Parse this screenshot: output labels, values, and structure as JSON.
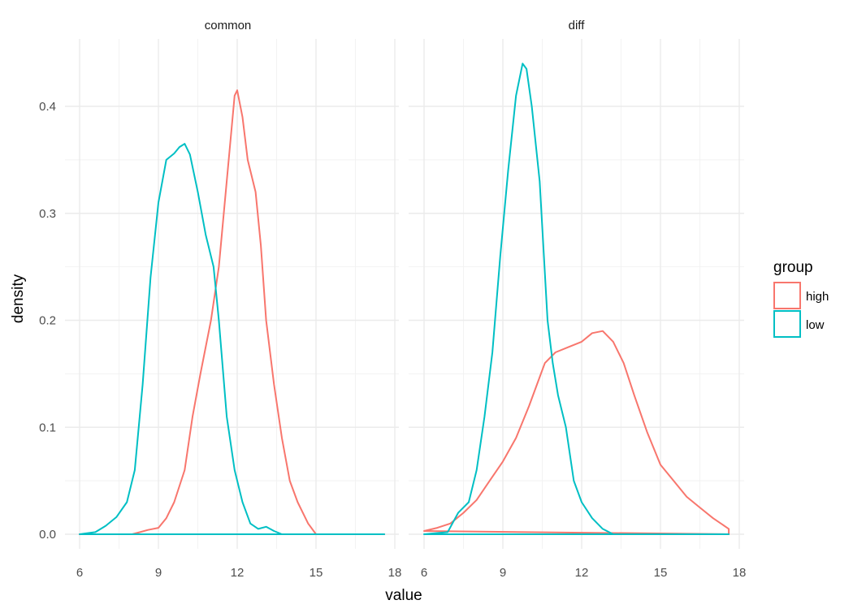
{
  "chart_data": {
    "type": "line",
    "subtype": "density, faceted",
    "xlabel": "value",
    "ylabel": "density",
    "xlim": [
      6,
      18
    ],
    "ylim": [
      0,
      0.44
    ],
    "x_ticks": [
      6,
      9,
      12,
      15,
      18
    ],
    "y_ticks": [
      0.0,
      0.1,
      0.2,
      0.3,
      0.4
    ],
    "y_tick_labels": [
      "0.0",
      "0.1",
      "0.2",
      "0.3",
      "0.4"
    ],
    "grid": true,
    "legend": {
      "title": "group",
      "placement": "right",
      "entries": [
        {
          "name": "high",
          "color": "#F8766D"
        },
        {
          "name": "low",
          "color": "#00BFC4"
        }
      ]
    },
    "facets": [
      {
        "label": "common",
        "series": [
          {
            "name": "high",
            "color": "#F8766D",
            "points": [
              [
                6.0,
                0
              ],
              [
                8.0,
                0.0
              ],
              [
                8.3,
                0.002
              ],
              [
                8.6,
                0.004
              ],
              [
                9.0,
                0.006
              ],
              [
                9.3,
                0.015
              ],
              [
                9.6,
                0.03
              ],
              [
                10.0,
                0.06
              ],
              [
                10.3,
                0.11
              ],
              [
                10.6,
                0.15
              ],
              [
                11.0,
                0.2
              ],
              [
                11.3,
                0.25
              ],
              [
                11.6,
                0.33
              ],
              [
                11.9,
                0.41
              ],
              [
                12.0,
                0.415
              ],
              [
                12.2,
                0.39
              ],
              [
                12.4,
                0.35
              ],
              [
                12.7,
                0.32
              ],
              [
                12.9,
                0.27
              ],
              [
                13.1,
                0.2
              ],
              [
                13.4,
                0.14
              ],
              [
                13.7,
                0.09
              ],
              [
                14.0,
                0.05
              ],
              [
                14.3,
                0.03
              ],
              [
                14.7,
                0.01
              ],
              [
                15.0,
                0.0
              ],
              [
                17.6,
                0
              ]
            ]
          },
          {
            "name": "low",
            "color": "#00BFC4",
            "points": [
              [
                6.0,
                0
              ],
              [
                6.6,
                0.002
              ],
              [
                7.0,
                0.008
              ],
              [
                7.4,
                0.016
              ],
              [
                7.8,
                0.03
              ],
              [
                8.1,
                0.06
              ],
              [
                8.4,
                0.14
              ],
              [
                8.7,
                0.24
              ],
              [
                9.0,
                0.31
              ],
              [
                9.3,
                0.35
              ],
              [
                9.6,
                0.356
              ],
              [
                9.8,
                0.362
              ],
              [
                10.0,
                0.365
              ],
              [
                10.2,
                0.355
              ],
              [
                10.5,
                0.32
              ],
              [
                10.8,
                0.28
              ],
              [
                11.1,
                0.25
              ],
              [
                11.3,
                0.2
              ],
              [
                11.6,
                0.11
              ],
              [
                11.9,
                0.06
              ],
              [
                12.2,
                0.03
              ],
              [
                12.5,
                0.01
              ],
              [
                12.8,
                0.005
              ],
              [
                13.1,
                0.007
              ],
              [
                13.4,
                0.003
              ],
              [
                13.7,
                0.0
              ],
              [
                17.6,
                0
              ]
            ]
          }
        ]
      },
      {
        "label": "diff",
        "series": [
          {
            "name": "high",
            "color": "#F8766D",
            "points": [
              [
                6.0,
                0.003
              ],
              [
                6.5,
                0.006
              ],
              [
                7.0,
                0.01
              ],
              [
                7.5,
                0.02
              ],
              [
                8.0,
                0.032
              ],
              [
                8.5,
                0.05
              ],
              [
                9.0,
                0.068
              ],
              [
                9.5,
                0.09
              ],
              [
                10.0,
                0.12
              ],
              [
                10.3,
                0.14
              ],
              [
                10.6,
                0.16
              ],
              [
                11.0,
                0.17
              ],
              [
                11.5,
                0.175
              ],
              [
                12.0,
                0.18
              ],
              [
                12.4,
                0.188
              ],
              [
                12.8,
                0.19
              ],
              [
                13.2,
                0.18
              ],
              [
                13.6,
                0.16
              ],
              [
                14.0,
                0.13
              ],
              [
                14.5,
                0.095
              ],
              [
                15.0,
                0.065
              ],
              [
                15.5,
                0.05
              ],
              [
                16.0,
                0.035
              ],
              [
                16.5,
                0.025
              ],
              [
                17.0,
                0.015
              ],
              [
                17.6,
                0.005
              ],
              [
                17.6,
                0
              ]
            ]
          },
          {
            "name": "low",
            "color": "#00BFC4",
            "points": [
              [
                6.0,
                0
              ],
              [
                6.9,
                0.002
              ],
              [
                7.3,
                0.02
              ],
              [
                7.7,
                0.03
              ],
              [
                8.0,
                0.06
              ],
              [
                8.3,
                0.11
              ],
              [
                8.6,
                0.17
              ],
              [
                8.9,
                0.26
              ],
              [
                9.2,
                0.34
              ],
              [
                9.5,
                0.41
              ],
              [
                9.75,
                0.44
              ],
              [
                9.9,
                0.435
              ],
              [
                10.1,
                0.4
              ],
              [
                10.4,
                0.33
              ],
              [
                10.7,
                0.2
              ],
              [
                10.9,
                0.16
              ],
              [
                11.1,
                0.13
              ],
              [
                11.4,
                0.1
              ],
              [
                11.7,
                0.05
              ],
              [
                12.0,
                0.03
              ],
              [
                12.4,
                0.015
              ],
              [
                12.8,
                0.005
              ],
              [
                13.2,
                0.0
              ],
              [
                17.6,
                0
              ]
            ]
          }
        ]
      }
    ]
  }
}
